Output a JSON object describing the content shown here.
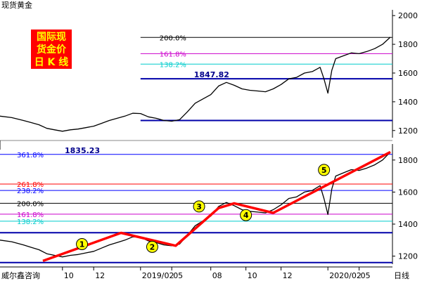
{
  "title": "现货黄金",
  "legend_box": {
    "lines": [
      "国际现",
      "货金价",
      "日 K 线"
    ],
    "bg": "#ff0000",
    "fg": "#ffff00"
  },
  "footer": {
    "source": "威尔鑫咨询",
    "period": "日线"
  },
  "colors": {
    "price": "#000000",
    "level": "#0000aa",
    "fib200": "#000000",
    "fib161": "#cc00cc",
    "fib138": "#00cccc",
    "fib261": "#ff0000",
    "fib238": "#0000ff",
    "fib361": "#0000ff",
    "trend": "#ff0000",
    "circle": "#ffff00"
  },
  "chart_data": [
    {
      "type": "line",
      "name": "top-panel",
      "ylim": [
        1150,
        2040
      ],
      "yticks": [
        1200,
        1400,
        1600,
        1800,
        2000
      ],
      "xlim": [
        0,
        100
      ],
      "series": [
        {
          "values": [
            [
              0,
              1300
            ],
            [
              3,
              1290
            ],
            [
              6,
              1270
            ],
            [
              8,
              1255
            ],
            [
              10,
              1240
            ],
            [
              12,
              1215
            ],
            [
              14,
              1205
            ],
            [
              16,
              1195
            ],
            [
              18,
              1205
            ],
            [
              20,
              1210
            ],
            [
              22,
              1220
            ],
            [
              24,
              1230
            ],
            [
              26,
              1250
            ],
            [
              28,
              1270
            ],
            [
              30,
              1285
            ],
            [
              32,
              1300
            ],
            [
              34,
              1320
            ],
            [
              36,
              1318
            ],
            [
              38,
              1295
            ],
            [
              40,
              1285
            ],
            [
              42,
              1270
            ],
            [
              44,
              1265
            ],
            [
              46,
              1275
            ],
            [
              48,
              1330
            ],
            [
              50,
              1390
            ],
            [
              52,
              1420
            ],
            [
              54,
              1450
            ],
            [
              56,
              1510
            ],
            [
              58,
              1535
            ],
            [
              60,
              1515
            ],
            [
              62,
              1490
            ],
            [
              64,
              1480
            ],
            [
              66,
              1475
            ],
            [
              68,
              1470
            ],
            [
              70,
              1490
            ],
            [
              72,
              1520
            ],
            [
              74,
              1560
            ],
            [
              76,
              1570
            ],
            [
              78,
              1600
            ],
            [
              80,
              1610
            ],
            [
              82,
              1640
            ],
            [
              83,
              1560
            ],
            [
              84,
              1460
            ],
            [
              85,
              1620
            ],
            [
              86,
              1700
            ],
            [
              88,
              1720
            ],
            [
              90,
              1740
            ],
            [
              92,
              1735
            ],
            [
              94,
              1750
            ],
            [
              96,
              1770
            ],
            [
              98,
              1800
            ],
            [
              100,
              1850
            ]
          ]
        }
      ],
      "levels": [
        {
          "y": 1560,
          "x0": 36,
          "kind": "level"
        },
        {
          "y": 1270,
          "x0": 36,
          "kind": "level"
        },
        {
          "y": 1847.82,
          "x0": 36,
          "kind": "fib200",
          "label": "200.0%"
        },
        {
          "y": 1735,
          "x0": 36,
          "kind": "fib161",
          "label": "161.8%"
        },
        {
          "y": 1662,
          "x0": 36,
          "kind": "fib138",
          "label": "138.2%"
        }
      ],
      "annotation": {
        "text": "1847.82"
      }
    },
    {
      "type": "line",
      "name": "bottom-panel",
      "ylim": [
        1150,
        1900
      ],
      "yticks": [
        1200,
        1400,
        1600,
        1800
      ],
      "xlim": [
        0,
        100
      ],
      "xticks": [
        {
          "x": 16,
          "label": "10"
        },
        {
          "x": 24,
          "label": "12"
        },
        {
          "x": 36,
          "label": "2019/02"
        },
        {
          "x": 44,
          "label": "05"
        },
        {
          "x": 54,
          "label": "08"
        },
        {
          "x": 63,
          "label": "10"
        },
        {
          "x": 72,
          "label": "12"
        },
        {
          "x": 84,
          "label": "2020/02"
        },
        {
          "x": 92,
          "label": "05"
        }
      ],
      "series": [
        {
          "values": [
            [
              0,
              1300
            ],
            [
              3,
              1290
            ],
            [
              6,
              1270
            ],
            [
              8,
              1255
            ],
            [
              10,
              1240
            ],
            [
              12,
              1215
            ],
            [
              14,
              1205
            ],
            [
              16,
              1195
            ],
            [
              18,
              1205
            ],
            [
              20,
              1210
            ],
            [
              22,
              1220
            ],
            [
              24,
              1230
            ],
            [
              26,
              1250
            ],
            [
              28,
              1270
            ],
            [
              30,
              1285
            ],
            [
              32,
              1300
            ],
            [
              34,
              1320
            ],
            [
              36,
              1318
            ],
            [
              38,
              1295
            ],
            [
              40,
              1285
            ],
            [
              42,
              1270
            ],
            [
              44,
              1265
            ],
            [
              46,
              1275
            ],
            [
              48,
              1330
            ],
            [
              50,
              1390
            ],
            [
              52,
              1420
            ],
            [
              54,
              1450
            ],
            [
              56,
              1510
            ],
            [
              58,
              1535
            ],
            [
              60,
              1515
            ],
            [
              62,
              1490
            ],
            [
              64,
              1480
            ],
            [
              66,
              1475
            ],
            [
              68,
              1470
            ],
            [
              70,
              1490
            ],
            [
              72,
              1520
            ],
            [
              74,
              1560
            ],
            [
              76,
              1570
            ],
            [
              78,
              1600
            ],
            [
              80,
              1610
            ],
            [
              82,
              1640
            ],
            [
              83,
              1560
            ],
            [
              84,
              1460
            ],
            [
              85,
              1620
            ],
            [
              86,
              1700
            ],
            [
              88,
              1720
            ],
            [
              90,
              1740
            ],
            [
              92,
              1735
            ],
            [
              94,
              1750
            ],
            [
              96,
              1770
            ],
            [
              98,
              1800
            ],
            [
              100,
              1850
            ]
          ]
        }
      ],
      "levels": [
        {
          "y": 1835.23,
          "x0": 0,
          "kind": "fib361",
          "label": "361.8%"
        },
        {
          "y": 1650,
          "x0": 0,
          "kind": "fib261",
          "label": "261.8%"
        },
        {
          "y": 1610,
          "x0": 0,
          "kind": "fib238",
          "label": "238.2%"
        },
        {
          "y": 1530,
          "x0": 0,
          "kind": "fib200",
          "label": "200.0%"
        },
        {
          "y": 1462,
          "x0": 0,
          "kind": "fib161",
          "label": "161.8%"
        },
        {
          "y": 1418,
          "x0": 0,
          "kind": "fib138",
          "label": "138.2%"
        },
        {
          "y": 1346,
          "x0": 0,
          "kind": "level"
        },
        {
          "y": 1160,
          "x0": 0,
          "kind": "level"
        }
      ],
      "annotation": {
        "text": "1835.23"
      },
      "trendline": [
        [
          11,
          1170
        ],
        [
          31,
          1345
        ],
        [
          45,
          1265
        ],
        [
          56,
          1500
        ],
        [
          60,
          1530
        ],
        [
          70,
          1470
        ],
        [
          100,
          1850
        ]
      ],
      "wave_markers": [
        {
          "label": "1",
          "x": 21,
          "y": 1275
        },
        {
          "label": "2",
          "x": 39,
          "y": 1258
        },
        {
          "label": "3",
          "x": 51,
          "y": 1510
        },
        {
          "label": "4",
          "x": 63,
          "y": 1456
        },
        {
          "label": "5",
          "x": 83,
          "y": 1738
        }
      ]
    }
  ]
}
